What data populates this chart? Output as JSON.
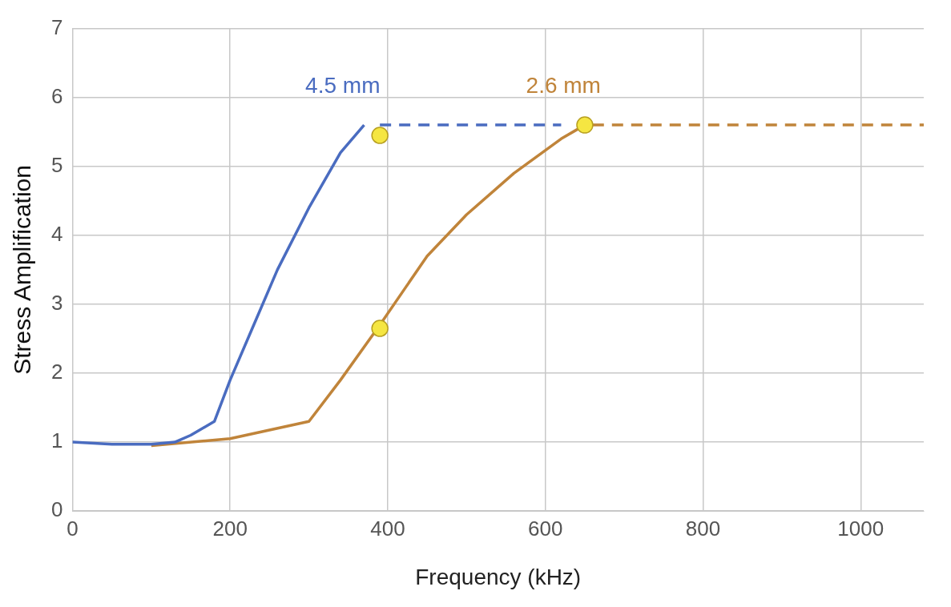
{
  "chart_data": {
    "type": "line",
    "xlabel": "Frequency (kHz)",
    "ylabel": "Stress Amplification",
    "xlim": [
      0,
      1080
    ],
    "xticks": [
      0,
      200,
      400,
      600,
      800,
      1000
    ],
    "ylim": [
      0,
      7
    ],
    "yticks": [
      0,
      1,
      2,
      3,
      4,
      5,
      6,
      7
    ],
    "grid": true,
    "legend": false,
    "series": [
      {
        "name": "4.5 mm",
        "color": "#4a6cc0",
        "line_style": "solid",
        "marker": "none",
        "x": [
          0,
          50,
          100,
          130,
          150,
          180,
          200,
          230,
          260,
          300,
          340,
          370
        ],
        "values": [
          1,
          0.97,
          0.97,
          1.0,
          1.1,
          1.3,
          1.9,
          2.7,
          3.5,
          4.4,
          5.2,
          5.6
        ]
      },
      {
        "color": "#4a6cc0",
        "line_style": "dashed",
        "marker": "none",
        "x": [
          390,
          620
        ],
        "values": [
          5.6,
          5.6
        ]
      },
      {
        "name": "2.6 mm",
        "color": "#c0843a",
        "line_style": "solid",
        "marker": "none",
        "x": [
          100,
          200,
          300,
          340,
          390,
          450,
          500,
          560,
          620,
          650
        ],
        "values": [
          0.95,
          1.05,
          1.3,
          1.9,
          2.7,
          3.7,
          4.3,
          4.9,
          5.4,
          5.6
        ]
      },
      {
        "color": "#c0843a",
        "line_style": "dashed",
        "marker": "none",
        "x": [
          660,
          1080
        ],
        "values": [
          5.6,
          5.6
        ]
      },
      {
        "type": "scatter",
        "color": "#f5e642",
        "marker": "circle",
        "x": [
          390,
          390,
          650
        ],
        "values": [
          5.45,
          2.65,
          5.6
        ]
      }
    ]
  }
}
